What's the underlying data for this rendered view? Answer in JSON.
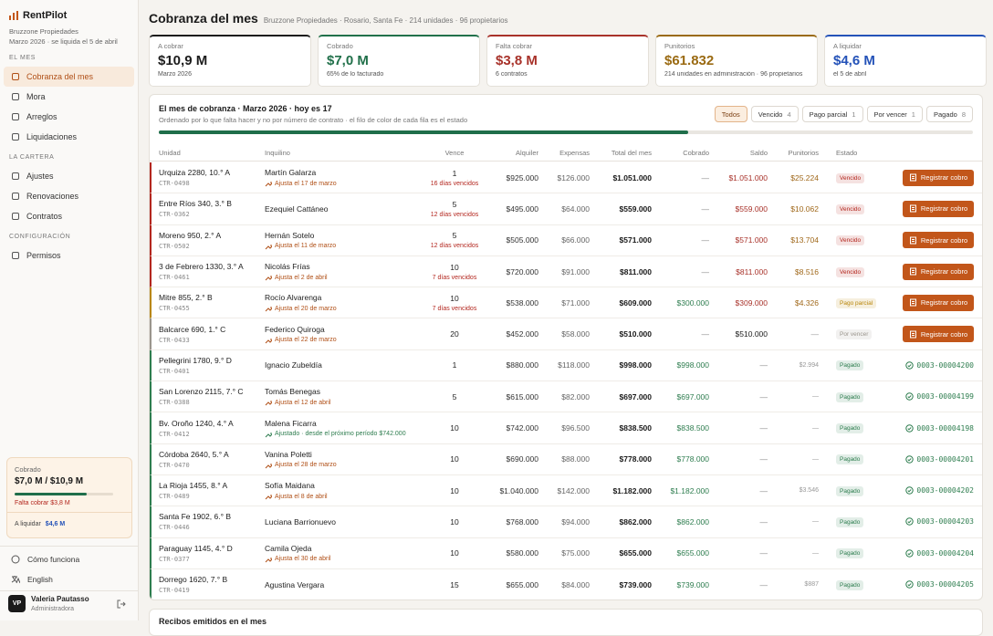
{
  "sidebar": {
    "brand": "RentPilot",
    "org": "Bruzzone Propiedades",
    "period": "Marzo 2026 · se liquida el 5 de abril",
    "sections": [
      {
        "title": "EL MES",
        "items": [
          {
            "label": "Cobranza del mes",
            "selected": true
          },
          {
            "label": "Mora"
          },
          {
            "label": "Arreglos"
          },
          {
            "label": "Liquidaciones"
          }
        ]
      },
      {
        "title": "LA CARTERA",
        "items": [
          {
            "label": "Ajustes"
          },
          {
            "label": "Renovaciones"
          },
          {
            "label": "Contratos"
          }
        ]
      },
      {
        "title": "CONFIGURACIÓN",
        "items": [
          {
            "label": "Permisos"
          }
        ]
      }
    ],
    "summary": {
      "label": "Cobrado",
      "value": "$7,0 M / $10,9 M",
      "missing": "Falta cobrar $3,8 M",
      "settle_label": "A liquidar",
      "settle_value": "$4,6 M"
    },
    "help": "Cómo funciona",
    "language": "English",
    "user": {
      "initials": "VP",
      "name": "Valeria Pautasso",
      "role": "Administradora"
    }
  },
  "header": {
    "title": "Cobranza del mes",
    "subtitle": "Bruzzone Propiedades · Rosario, Santa Fe · 214 unidades · 96 propietarios"
  },
  "kpis": [
    {
      "label": "A cobrar",
      "value": "$10,9 M",
      "note": "Marzo 2026",
      "color": "#1c1c1c"
    },
    {
      "label": "Cobrado",
      "value": "$7,0 M",
      "note": "65% de lo facturado",
      "color": "#21704a"
    },
    {
      "label": "Falta cobrar",
      "value": "$3,8 M",
      "note": "6 contratos",
      "color": "#a8322a"
    },
    {
      "label": "Punitorios",
      "value": "$61.832",
      "note": "214 unidades en administración · 96 propietarios",
      "color": "#9a6a12"
    },
    {
      "label": "A liquidar",
      "value": "$4,6 M",
      "note": "el 5 de abril",
      "color": "#2452b8"
    }
  ],
  "panel": {
    "title": "El mes de cobranza · Marzo 2026 · hoy es 17",
    "subtitle": "Ordenado por lo que falta hacer y no por número de contrato · el filo de color de cada fila es el estado",
    "filters": [
      {
        "label": "Todos",
        "selected": true
      },
      {
        "label": "Vencido",
        "count": 4
      },
      {
        "label": "Pago parcial",
        "count": 1
      },
      {
        "label": "Por vencer",
        "count": 1
      },
      {
        "label": "Pagado",
        "count": 8
      }
    ],
    "columns": [
      "Unidad",
      "Inquilino",
      "Vence",
      "Alquiler",
      "Expensas",
      "Total del mes",
      "Cobrado",
      "Saldo",
      "Punitorios",
      "Estado"
    ],
    "rows": [
      {
        "unit": "Urquiza 2280, 10.° A",
        "code": "CTR-0498",
        "tenant": "Martín Galarza",
        "adjust": "Ajusta el 17 de marzo",
        "due": 1,
        "overdue": "16 días vencidos",
        "rent": "$925.000",
        "expenses": "$126.000",
        "total": "$1.051.000",
        "paid": "—",
        "balance": "$1.051.000",
        "penalty": "$25.224",
        "status": "Vencido",
        "color": "#b3261e",
        "action": "Registrar cobro"
      },
      {
        "unit": "Entre Ríos 340, 3.° B",
        "code": "CTR-0362",
        "tenant": "Ezequiel Cattáneo",
        "due": 5,
        "overdue": "12 días vencidos",
        "rent": "$495.000",
        "expenses": "$64.000",
        "total": "$559.000",
        "paid": "—",
        "balance": "$559.000",
        "penalty": "$10.062",
        "status": "Vencido",
        "color": "#b3261e",
        "action": "Registrar cobro"
      },
      {
        "unit": "Moreno 950, 2.° A",
        "code": "CTR-0502",
        "tenant": "Hernán Sotelo",
        "adjust": "Ajusta el 11 de marzo",
        "due": 5,
        "overdue": "12 días vencidos",
        "rent": "$505.000",
        "expenses": "$66.000",
        "total": "$571.000",
        "paid": "—",
        "balance": "$571.000",
        "penalty": "$13.704",
        "status": "Vencido",
        "color": "#b3261e",
        "action": "Registrar cobro"
      },
      {
        "unit": "3 de Febrero 1330, 3.° A",
        "code": "CTR-0461",
        "tenant": "Nicolás Frías",
        "adjust": "Ajusta el 2 de abril",
        "due": 10,
        "overdue": "7 días vencidos",
        "rent": "$720.000",
        "expenses": "$91.000",
        "total": "$811.000",
        "paid": "—",
        "balance": "$811.000",
        "penalty": "$8.516",
        "status": "Vencido",
        "color": "#b3261e",
        "action": "Registrar cobro"
      },
      {
        "unit": "Mitre 855, 2.° B",
        "code": "CTR-0455",
        "tenant": "Rocío Alvarenga",
        "adjust": "Ajusta el 20 de marzo",
        "due": 10,
        "overdue": "7 días vencidos",
        "rent": "$538.000",
        "expenses": "$71.000",
        "total": "$609.000",
        "paid": "$300.000",
        "balance": "$309.000",
        "penalty": "$4.326",
        "status": "Pago parcial",
        "color": "#b8860b",
        "action": "Registrar cobro"
      },
      {
        "unit": "Balcarce 690, 1.° C",
        "code": "CTR-0433",
        "tenant": "Federico Quiroga",
        "adjust": "Ajusta el 22 de marzo",
        "due": 20,
        "rent": "$452.000",
        "expenses": "$58.000",
        "total": "$510.000",
        "paid": "—",
        "balance": "$510.000",
        "penalty": "—",
        "status": "Por vencer",
        "color": "#9a958d",
        "action": "Registrar cobro"
      },
      {
        "unit": "Pellegrini 1780, 9.° D",
        "code": "CTR-0401",
        "tenant": "Ignacio Zubeldía",
        "due": 1,
        "rent": "$880.000",
        "expenses": "$118.000",
        "total": "$998.000",
        "paid": "$998.000",
        "balance": "—",
        "penalty": "$2.994",
        "status": "Pagado",
        "color": "#2e7d4f",
        "receipt": "0003-00004200"
      },
      {
        "unit": "San Lorenzo 2115, 7.° C",
        "code": "CTR-0388",
        "tenant": "Tomás Benegas",
        "adjust": "Ajusta el 12 de abril",
        "due": 5,
        "rent": "$615.000",
        "expenses": "$82.000",
        "total": "$697.000",
        "paid": "$697.000",
        "balance": "—",
        "penalty": "—",
        "status": "Pagado",
        "color": "#2e7d4f",
        "receipt": "0003-00004199"
      },
      {
        "unit": "Bv. Oroño 1240, 4.° A",
        "code": "CTR-0412",
        "tenant": "Malena Ficarra",
        "adjust": "Ajustado · desde el próximo período $742.000",
        "adjusted": true,
        "due": 10,
        "rent": "$742.000",
        "expenses": "$96.500",
        "total": "$838.500",
        "paid": "$838.500",
        "balance": "—",
        "penalty": "—",
        "status": "Pagado",
        "color": "#2e7d4f",
        "receipt": "0003-00004198"
      },
      {
        "unit": "Córdoba 2640, 5.° A",
        "code": "CTR-0470",
        "tenant": "Vanina Poletti",
        "adjust": "Ajusta el 28 de marzo",
        "due": 10,
        "rent": "$690.000",
        "expenses": "$88.000",
        "total": "$778.000",
        "paid": "$778.000",
        "balance": "—",
        "penalty": "—",
        "status": "Pagado",
        "color": "#2e7d4f",
        "receipt": "0003-00004201"
      },
      {
        "unit": "La Rioja 1455, 8.° A",
        "code": "CTR-0489",
        "tenant": "Sofía Maidana",
        "adjust": "Ajusta el 8 de abril",
        "due": 10,
        "rent": "$1.040.000",
        "expenses": "$142.000",
        "total": "$1.182.000",
        "paid": "$1.182.000",
        "balance": "—",
        "penalty": "$3.546",
        "status": "Pagado",
        "color": "#2e7d4f",
        "receipt": "0003-00004202"
      },
      {
        "unit": "Santa Fe 1902, 6.° B",
        "code": "CTR-0446",
        "tenant": "Luciana Barrionuevo",
        "due": 10,
        "rent": "$768.000",
        "expenses": "$94.000",
        "total": "$862.000",
        "paid": "$862.000",
        "balance": "—",
        "penalty": "—",
        "status": "Pagado",
        "color": "#2e7d4f",
        "receipt": "0003-00004203"
      },
      {
        "unit": "Paraguay 1145, 4.° D",
        "code": "CTR-0377",
        "tenant": "Camila Ojeda",
        "adjust": "Ajusta el 30 de abril",
        "due": 10,
        "rent": "$580.000",
        "expenses": "$75.000",
        "total": "$655.000",
        "paid": "$655.000",
        "balance": "—",
        "penalty": "—",
        "status": "Pagado",
        "color": "#2e7d4f",
        "receipt": "0003-00004204"
      },
      {
        "unit": "Dorrego 1620, 7.° B",
        "code": "CTR-0419",
        "tenant": "Agustina Vergara",
        "due": 15,
        "rent": "$655.000",
        "expenses": "$84.000",
        "total": "$739.000",
        "paid": "$739.000",
        "balance": "—",
        "penalty": "$887",
        "status": "Pagado",
        "color": "#2e7d4f",
        "receipt": "0003-00004205"
      }
    ]
  },
  "receipts_panel": {
    "title": "Recibos emitidos en el mes"
  }
}
